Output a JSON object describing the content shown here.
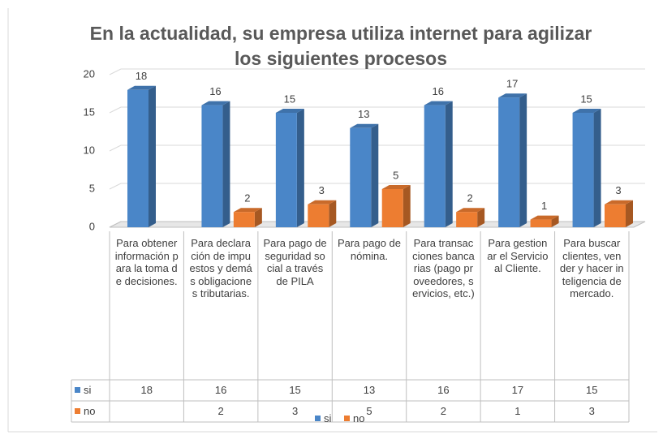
{
  "chart_data": {
    "type": "bar3d",
    "title": "En la actualidad, su empresa utiliza internet para agilizar los siguientes procesos",
    "categories": [
      "Para obtener información para la toma de decisiones.",
      "Para declaración de impuestos y demás obligaciones tributarias.",
      "Para pago de seguridad social a través de PILA",
      "Para pago de nómina.",
      "Para transacciones bancarias (pago proveedores, servicios, etc.)",
      "Para gestionar el Servicio al Cliente.",
      "Para buscar clientes, vender y hacer inteligencia de mercado."
    ],
    "series": [
      {
        "name": "si",
        "color": "#4a86c8",
        "values": [
          18,
          16,
          15,
          13,
          16,
          17,
          15
        ]
      },
      {
        "name": "no",
        "color": "#ed7d31",
        "values": [
          null,
          2,
          3,
          5,
          2,
          1,
          3
        ]
      }
    ],
    "ylim": [
      0,
      20
    ],
    "yticks": [
      0,
      5,
      10,
      15,
      20
    ],
    "grid": true
  }
}
